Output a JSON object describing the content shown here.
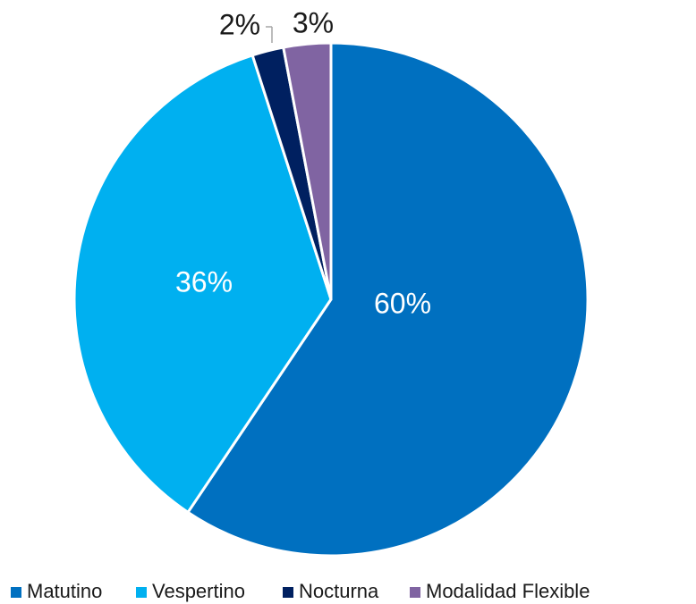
{
  "chart_data": {
    "type": "pie",
    "categories": [
      "Matutino",
      "Vespertino",
      "Nocturna",
      "Modalidad Flexible"
    ],
    "values": [
      60,
      36,
      2,
      3
    ],
    "value_labels": [
      "60%",
      "36%",
      "2%",
      "3%"
    ],
    "colors": [
      "#0070c0",
      "#00b0f0",
      "#002060",
      "#8064a2"
    ],
    "legend": "bottom"
  }
}
